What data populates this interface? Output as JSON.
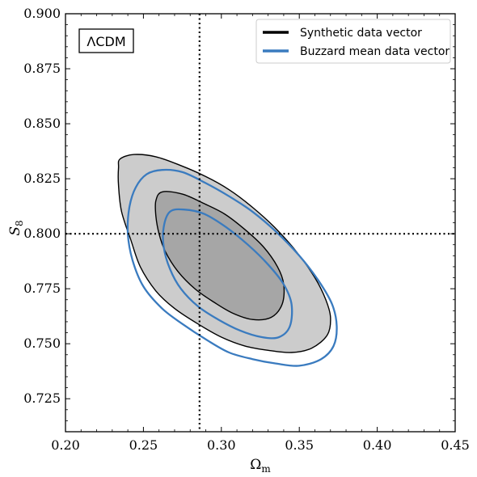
{
  "chart_data": {
    "type": "contour",
    "xlabel": "Ωm",
    "ylabel": "S8",
    "xlim": [
      0.2,
      0.45
    ],
    "ylim": [
      0.71,
      0.9
    ],
    "xticks": [
      "0.20",
      "0.25",
      "0.30",
      "0.35",
      "0.40",
      "0.45"
    ],
    "yticks": [
      "0.725",
      "0.750",
      "0.775",
      "0.800",
      "0.825",
      "0.850",
      "0.875",
      "0.900"
    ],
    "xtick_values": [
      0.2,
      0.25,
      0.3,
      0.35,
      0.4,
      0.45
    ],
    "ytick_values": [
      0.725,
      0.75,
      0.775,
      0.8,
      0.825,
      0.85,
      0.875,
      0.9
    ],
    "model_label": "ΛCDM",
    "reference_lines": {
      "omega_m": 0.286,
      "s8": 0.8
    },
    "legend": {
      "placement": "top-right"
    },
    "series": [
      {
        "name": "Synthetic data vector",
        "color": "#000000",
        "filled": true,
        "contours": [
          {
            "level": "95%",
            "fill": "#cccccc",
            "points": [
              [
                0.235,
                0.834
              ],
              [
                0.244,
                0.836
              ],
              [
                0.258,
                0.835
              ],
              [
                0.274,
                0.831
              ],
              [
                0.29,
                0.826
              ],
              [
                0.305,
                0.82
              ],
              [
                0.32,
                0.812
              ],
              [
                0.334,
                0.803
              ],
              [
                0.348,
                0.792
              ],
              [
                0.36,
                0.78
              ],
              [
                0.367,
                0.77
              ],
              [
                0.37,
                0.762
              ],
              [
                0.368,
                0.754
              ],
              [
                0.358,
                0.748
              ],
              [
                0.345,
                0.746
              ],
              [
                0.33,
                0.747
              ],
              [
                0.315,
                0.749
              ],
              [
                0.3,
                0.753
              ],
              [
                0.285,
                0.759
              ],
              [
                0.27,
                0.766
              ],
              [
                0.258,
                0.774
              ],
              [
                0.248,
                0.785
              ],
              [
                0.242,
                0.797
              ],
              [
                0.236,
                0.81
              ],
              [
                0.234,
                0.822
              ],
              [
                0.234,
                0.83
              ]
            ]
          },
          {
            "level": "68%",
            "fill": "#a6a6a6",
            "points": [
              [
                0.262,
                0.819
              ],
              [
                0.275,
                0.818
              ],
              [
                0.288,
                0.814
              ],
              [
                0.302,
                0.809
              ],
              [
                0.315,
                0.802
              ],
              [
                0.327,
                0.794
              ],
              [
                0.336,
                0.785
              ],
              [
                0.34,
                0.777
              ],
              [
                0.339,
                0.768
              ],
              [
                0.332,
                0.762
              ],
              [
                0.32,
                0.761
              ],
              [
                0.307,
                0.764
              ],
              [
                0.295,
                0.769
              ],
              [
                0.283,
                0.775
              ],
              [
                0.272,
                0.783
              ],
              [
                0.264,
                0.792
              ],
              [
                0.26,
                0.8
              ],
              [
                0.258,
                0.808
              ],
              [
                0.258,
                0.815
              ]
            ]
          }
        ]
      },
      {
        "name": "Buzzard mean data vector",
        "color": "#3a7bbf",
        "filled": false,
        "contours": [
          {
            "level": "95%",
            "points": [
              [
                0.252,
                0.827
              ],
              [
                0.262,
                0.829
              ],
              [
                0.275,
                0.828
              ],
              [
                0.29,
                0.823
              ],
              [
                0.305,
                0.817
              ],
              [
                0.32,
                0.81
              ],
              [
                0.335,
                0.801
              ],
              [
                0.35,
                0.79
              ],
              [
                0.362,
                0.779
              ],
              [
                0.371,
                0.768
              ],
              [
                0.374,
                0.758
              ],
              [
                0.372,
                0.749
              ],
              [
                0.364,
                0.743
              ],
              [
                0.35,
                0.74
              ],
              [
                0.335,
                0.741
              ],
              [
                0.32,
                0.743
              ],
              [
                0.305,
                0.746
              ],
              [
                0.29,
                0.752
              ],
              [
                0.275,
                0.759
              ],
              [
                0.262,
                0.766
              ],
              [
                0.25,
                0.776
              ],
              [
                0.243,
                0.788
              ],
              [
                0.24,
                0.8
              ],
              [
                0.241,
                0.812
              ],
              [
                0.245,
                0.821
              ]
            ]
          },
          {
            "level": "68%",
            "points": [
              [
                0.267,
                0.81
              ],
              [
                0.276,
                0.811
              ],
              [
                0.289,
                0.809
              ],
              [
                0.303,
                0.803
              ],
              [
                0.317,
                0.795
              ],
              [
                0.33,
                0.786
              ],
              [
                0.34,
                0.777
              ],
              [
                0.345,
                0.768
              ],
              [
                0.344,
                0.758
              ],
              [
                0.337,
                0.753
              ],
              [
                0.326,
                0.753
              ],
              [
                0.312,
                0.756
              ],
              [
                0.298,
                0.761
              ],
              [
                0.285,
                0.767
              ],
              [
                0.274,
                0.775
              ],
              [
                0.267,
                0.784
              ],
              [
                0.263,
                0.794
              ],
              [
                0.263,
                0.803
              ]
            ]
          }
        ]
      }
    ]
  }
}
